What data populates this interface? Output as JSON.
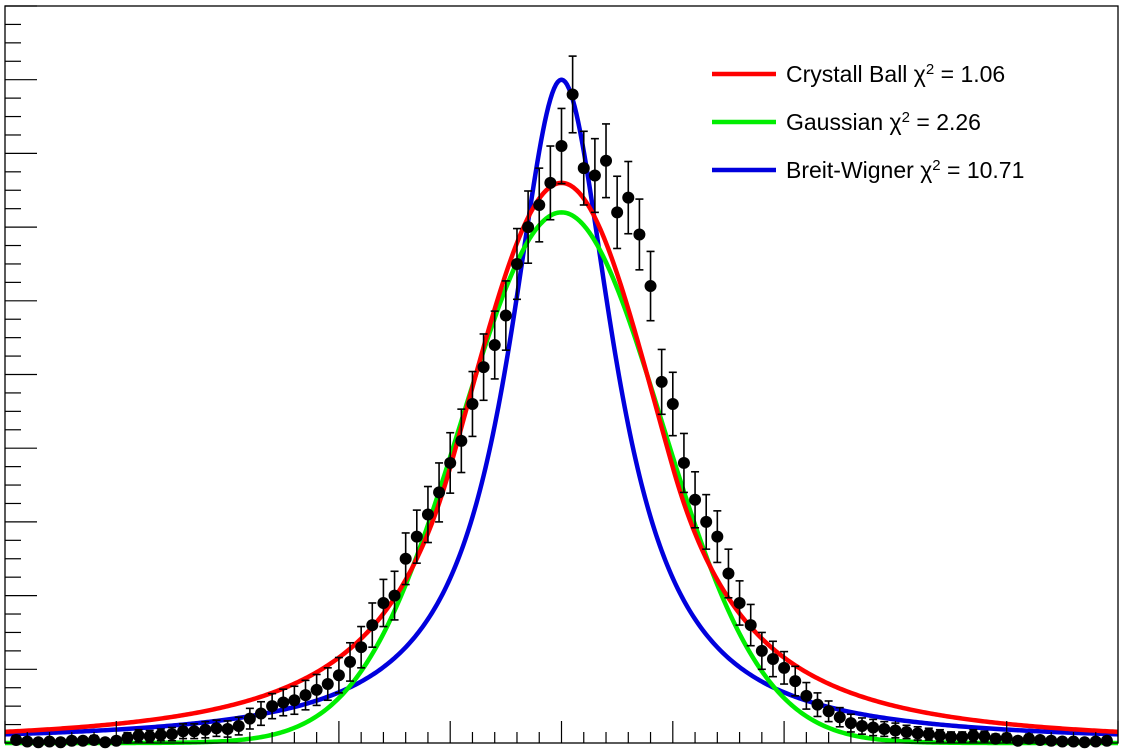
{
  "chart_data": {
    "type": "scatter",
    "title": "",
    "xlabel": "",
    "ylabel": "",
    "xlim": [
      0,
      100
    ],
    "ylim": [
      0,
      1
    ],
    "x_ticks": {
      "major_every": 10,
      "minor_every": 2
    },
    "y_ticks": {
      "major_every": 0.1,
      "minor_every": 0.025
    },
    "legend": {
      "placement": "top-right"
    },
    "data_points": {
      "name": "",
      "color": "#000000",
      "x": [
        1,
        2,
        3,
        4,
        5,
        6,
        7,
        8,
        9,
        10,
        11,
        12,
        13,
        14,
        15,
        16,
        17,
        18,
        19,
        20,
        21,
        22,
        23,
        24,
        25,
        26,
        27,
        28,
        29,
        30,
        31,
        32,
        33,
        34,
        35,
        36,
        37,
        38,
        39,
        40,
        41,
        42,
        43,
        44,
        45,
        46,
        47,
        48,
        49,
        50,
        51,
        52,
        53,
        54,
        55,
        56,
        57,
        58,
        59,
        60,
        61,
        62,
        63,
        64,
        65,
        66,
        67,
        68,
        69,
        70,
        71,
        72,
        73,
        74,
        75,
        76,
        77,
        78,
        79,
        80,
        81,
        82,
        83,
        84,
        85,
        86,
        87,
        88,
        89,
        90,
        91,
        92,
        93,
        94,
        95,
        96,
        97,
        98,
        99
      ],
      "y": [
        0.004,
        0.002,
        0.001,
        0.002,
        0.001,
        0.003,
        0.003,
        0.004,
        0.001,
        0.003,
        0.007,
        0.01,
        0.009,
        0.011,
        0.012,
        0.016,
        0.016,
        0.018,
        0.02,
        0.019,
        0.023,
        0.033,
        0.04,
        0.05,
        0.055,
        0.058,
        0.065,
        0.072,
        0.08,
        0.092,
        0.11,
        0.13,
        0.16,
        0.19,
        0.2,
        0.25,
        0.28,
        0.31,
        0.34,
        0.38,
        0.41,
        0.46,
        0.51,
        0.54,
        0.58,
        0.65,
        0.7,
        0.73,
        0.76,
        0.81,
        0.88,
        0.78,
        0.77,
        0.79,
        0.72,
        0.74,
        0.69,
        0.62,
        0.49,
        0.46,
        0.38,
        0.33,
        0.3,
        0.28,
        0.23,
        0.19,
        0.16,
        0.125,
        0.114,
        0.102,
        0.084,
        0.064,
        0.052,
        0.043,
        0.035,
        0.027,
        0.023,
        0.021,
        0.019,
        0.017,
        0.015,
        0.013,
        0.012,
        0.01,
        0.008,
        0.008,
        0.01,
        0.009,
        0.006,
        0.007,
        0.003,
        0.006,
        0.004,
        0.003,
        0.002,
        0.002,
        0.001,
        0.002,
        0.003
      ],
      "err": [
        0.006,
        0.005,
        0.004,
        0.005,
        0.004,
        0.005,
        0.005,
        0.006,
        0.004,
        0.005,
        0.007,
        0.008,
        0.008,
        0.008,
        0.009,
        0.01,
        0.01,
        0.011,
        0.011,
        0.011,
        0.012,
        0.014,
        0.016,
        0.017,
        0.018,
        0.019,
        0.02,
        0.021,
        0.022,
        0.024,
        0.026,
        0.028,
        0.03,
        0.032,
        0.033,
        0.035,
        0.036,
        0.038,
        0.04,
        0.041,
        0.043,
        0.044,
        0.045,
        0.046,
        0.047,
        0.048,
        0.049,
        0.05,
        0.05,
        0.051,
        0.052,
        0.05,
        0.05,
        0.05,
        0.049,
        0.049,
        0.048,
        0.047,
        0.044,
        0.043,
        0.04,
        0.038,
        0.037,
        0.035,
        0.033,
        0.03,
        0.028,
        0.025,
        0.024,
        0.022,
        0.02,
        0.018,
        0.016,
        0.014,
        0.013,
        0.012,
        0.011,
        0.011,
        0.01,
        0.01,
        0.009,
        0.009,
        0.008,
        0.008,
        0.007,
        0.007,
        0.008,
        0.007,
        0.006,
        0.006,
        0.005,
        0.006,
        0.005,
        0.005,
        0.004,
        0.004,
        0.004,
        0.004,
        0.005
      ]
    },
    "series": [
      {
        "name": "Crystall Ball χ² = 1.06",
        "label_prefix": "Crystall Ball χ",
        "label_sup": "2",
        "label_suffix": " = 1.06",
        "color": "#ff0000",
        "model": "crystal_ball",
        "params": {
          "mean": 50.0,
          "sigma": 8.4,
          "alpha": 1.2,
          "n": 3.0,
          "amplitude": 0.76
        }
      },
      {
        "name": "Gaussian χ² = 2.26",
        "label_prefix": "Gaussian χ",
        "label_sup": "2",
        "label_suffix": " = 2.26",
        "color": "#00ee00",
        "model": "gaussian",
        "params": {
          "mean": 50.0,
          "sigma": 9.0,
          "amplitude": 0.72
        }
      },
      {
        "name": "Breit-Wigner χ² = 10.71",
        "label_prefix": "Breit-Wigner χ",
        "label_sup": "2",
        "label_suffix": " = 10.71",
        "color": "#0000dd",
        "model": "breit_wigner",
        "params": {
          "mean": 50.0,
          "gamma": 11.5,
          "amplitude": 0.9
        }
      }
    ]
  }
}
